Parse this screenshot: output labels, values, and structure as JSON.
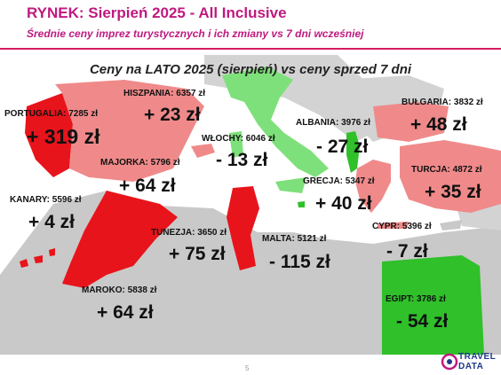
{
  "header": {
    "title": "RYNEK: Sierpień 2025 - All Inclusive",
    "subtitle": "Średnie ceny imprez turystycznych i ich zmiany vs 7 dni wcześniej"
  },
  "map": {
    "title": "Ceny na LATO 2025 (sierpień) vs ceny sprzed 7 dni",
    "legend_colors": {
      "increase_strong": "#e8141b",
      "increase_light": "#f08a8a",
      "decrease": "#7ee07a",
      "decrease_strong": "#2fc02a",
      "neutral": "#c9c9c9"
    },
    "destinations": [
      {
        "id": "portugalia",
        "label": "PORTUGALIA: 7285 zł",
        "change": "+ 319 zł"
      },
      {
        "id": "hiszpania",
        "label": "HISZPANIA: 6357 zł",
        "change": "+ 23 zł"
      },
      {
        "id": "majorka",
        "label": "MAJORKA: 5796 zł",
        "change": "+ 64 zł"
      },
      {
        "id": "kanary",
        "label": "KANARY: 5596 zł",
        "change": "+ 4 zł"
      },
      {
        "id": "maroko",
        "label": "MAROKO: 5838 zł",
        "change": "+ 64 zł"
      },
      {
        "id": "wlochy",
        "label": "WŁOCHY: 6046 zł",
        "change": "- 13 zł"
      },
      {
        "id": "tunezja",
        "label": "TUNEZJA: 3650 zł",
        "change": "+ 75 zł"
      },
      {
        "id": "malta",
        "label": "MALTA: 5121 zł",
        "change": "- 115 zł"
      },
      {
        "id": "albania",
        "label": "ALBANIA: 3976 zł",
        "change": "- 27 zł"
      },
      {
        "id": "bulgaria",
        "label": "BUŁGARIA: 3832 zł",
        "change": "+ 48 zł"
      },
      {
        "id": "turcja",
        "label": "TURCJA: 4872 zł",
        "change": "+ 35 zł"
      },
      {
        "id": "grecja",
        "label": "GRECJA: 5347 zł",
        "change": "+ 40 zł"
      },
      {
        "id": "cypr",
        "label": "CYPR: 5396 zł",
        "change": "- 7 zł"
      },
      {
        "id": "egipt",
        "label": "EGIPT: 3786 zł",
        "change": "- 54 zł"
      }
    ]
  },
  "footer": {
    "page_number": "5",
    "logo_line1": "TRAVEL",
    "logo_line2": "DATA"
  }
}
